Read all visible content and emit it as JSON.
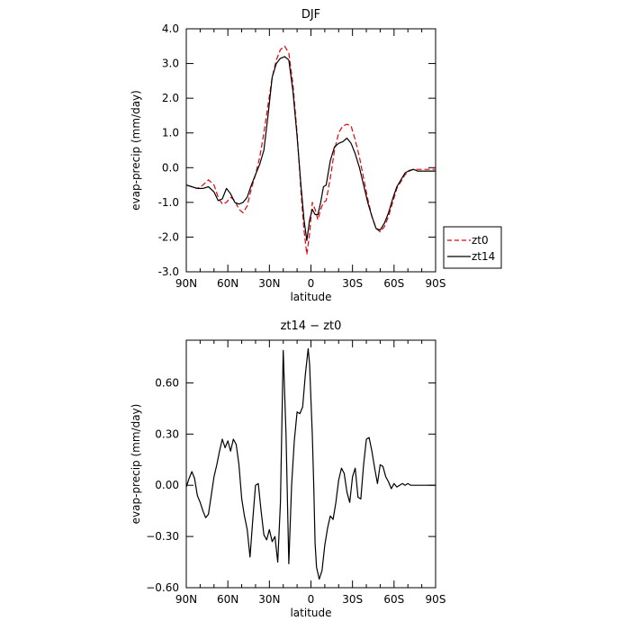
{
  "chart_data": [
    {
      "type": "line",
      "title": "DJF",
      "xlabel": "latitude",
      "ylabel": "evap-precip (mm/day)",
      "xlim": [
        -90,
        90
      ],
      "ylim": [
        -3.0,
        4.0
      ],
      "x_ticks": [
        -90,
        -60,
        -30,
        0,
        30,
        60,
        90
      ],
      "x_tick_labels": [
        "90N",
        "60N",
        "30N",
        "0",
        "30S",
        "60S",
        "90S"
      ],
      "y_ticks": [
        -3,
        -2,
        -1,
        0,
        1,
        2,
        3,
        4
      ],
      "y_tick_labels": [
        "-3.0",
        "-2.0",
        "-1.0",
        "0.0",
        "1.0",
        "2.0",
        "3.0",
        "4.0"
      ],
      "legend_position": "outside-right",
      "series": [
        {
          "name": "zt0",
          "color": "#e8000b",
          "dash": "dashed",
          "x": [
            -90,
            -86,
            -82,
            -78,
            -74,
            -70,
            -67,
            -64,
            -61,
            -58,
            -55,
            -52,
            -49,
            -46,
            -43,
            -40,
            -37,
            -34,
            -31,
            -28,
            -25,
            -22,
            -19,
            -16,
            -13,
            -10,
            -7,
            -5,
            -3,
            -1,
            1,
            3,
            5,
            7,
            9,
            11,
            14,
            17,
            20,
            23,
            26,
            29,
            32,
            35,
            38,
            41,
            44,
            47,
            50,
            53,
            56,
            59,
            62,
            65,
            68,
            71,
            74,
            77,
            80,
            83,
            86,
            90
          ],
          "y": [
            -0.5,
            -0.55,
            -0.6,
            -0.5,
            -0.35,
            -0.5,
            -0.85,
            -1.05,
            -1.0,
            -0.85,
            -0.95,
            -1.2,
            -1.3,
            -1.1,
            -0.6,
            -0.2,
            0.3,
            1.0,
            1.8,
            2.6,
            3.1,
            3.4,
            3.5,
            3.3,
            2.4,
            1.0,
            -0.8,
            -1.8,
            -2.5,
            -1.9,
            -1.0,
            -1.2,
            -1.5,
            -1.2,
            -1.0,
            -0.95,
            -0.3,
            0.5,
            1.0,
            1.2,
            1.25,
            1.2,
            0.8,
            0.3,
            -0.3,
            -0.9,
            -1.4,
            -1.75,
            -1.85,
            -1.7,
            -1.4,
            -1.0,
            -0.6,
            -0.4,
            -0.2,
            -0.1,
            -0.05,
            -0.05,
            -0.05,
            -0.05,
            -0.05,
            -0.05
          ]
        },
        {
          "name": "zt14",
          "color": "#000000",
          "dash": "solid",
          "x": [
            -90,
            -86,
            -82,
            -78,
            -74,
            -70,
            -67,
            -64,
            -61,
            -58,
            -55,
            -52,
            -49,
            -46,
            -43,
            -40,
            -37,
            -34,
            -31,
            -28,
            -25,
            -22,
            -19,
            -16,
            -13,
            -10,
            -7,
            -5,
            -3,
            -1,
            1,
            3,
            5,
            7,
            9,
            11,
            14,
            17,
            20,
            23,
            26,
            29,
            32,
            35,
            38,
            41,
            44,
            47,
            50,
            53,
            56,
            59,
            62,
            65,
            68,
            71,
            74,
            77,
            80,
            83,
            86,
            90
          ],
          "y": [
            -0.5,
            -0.55,
            -0.6,
            -0.6,
            -0.55,
            -0.7,
            -0.95,
            -0.9,
            -0.6,
            -0.75,
            -1.0,
            -1.05,
            -1.0,
            -0.85,
            -0.5,
            -0.2,
            0.1,
            0.5,
            1.5,
            2.6,
            3.0,
            3.15,
            3.2,
            3.1,
            2.2,
            0.9,
            -0.6,
            -1.5,
            -2.1,
            -1.5,
            -1.2,
            -1.35,
            -1.35,
            -1.0,
            -0.55,
            -0.5,
            0.2,
            0.6,
            0.7,
            0.75,
            0.85,
            0.7,
            0.4,
            0.0,
            -0.5,
            -1.0,
            -1.4,
            -1.75,
            -1.8,
            -1.6,
            -1.3,
            -0.9,
            -0.55,
            -0.35,
            -0.15,
            -0.08,
            -0.05,
            -0.1,
            -0.1,
            -0.1,
            -0.1,
            -0.1
          ]
        }
      ]
    },
    {
      "type": "line",
      "title": "zt14 − zt0",
      "xlabel": "latitude",
      "ylabel": "evap-precip (mm/day)",
      "xlim": [
        -90,
        90
      ],
      "ylim": [
        -0.6,
        0.85
      ],
      "x_ticks": [
        -90,
        -60,
        -30,
        0,
        30,
        60,
        90
      ],
      "x_tick_labels": [
        "90N",
        "60N",
        "30N",
        "0",
        "30S",
        "60S",
        "90S"
      ],
      "y_ticks": [
        -0.6,
        -0.3,
        0,
        0.3,
        0.6
      ],
      "y_tick_labels": [
        "−0.60",
        "−0.30",
        "0.00",
        "0.30",
        "0.60"
      ],
      "series": [
        {
          "color": "#000000",
          "dash": "solid",
          "x": [
            -90,
            -88,
            -86,
            -84,
            -82,
            -80,
            -78,
            -76,
            -74,
            -72,
            -70,
            -68,
            -66,
            -64,
            -62,
            -60,
            -58,
            -56,
            -54,
            -52,
            -50,
            -48,
            -46,
            -44,
            -42,
            -40,
            -38,
            -36,
            -34,
            -32,
            -30,
            -28,
            -26,
            -24,
            -22,
            -20,
            -18,
            -16,
            -14,
            -12,
            -10,
            -8,
            -6,
            -4,
            -2,
            -1,
            0,
            1,
            2,
            3,
            4,
            6,
            8,
            10,
            12,
            14,
            16,
            18,
            20,
            22,
            24,
            26,
            28,
            30,
            32,
            34,
            36,
            38,
            40,
            42,
            44,
            46,
            48,
            50,
            52,
            54,
            56,
            58,
            60,
            62,
            64,
            66,
            68,
            70,
            72,
            74,
            76,
            78,
            80,
            82,
            84,
            86,
            88,
            90
          ],
          "y": [
            -0.01,
            0.04,
            0.08,
            0.04,
            -0.06,
            -0.1,
            -0.15,
            -0.19,
            -0.17,
            -0.06,
            0.05,
            0.12,
            0.2,
            0.27,
            0.22,
            0.26,
            0.2,
            0.27,
            0.24,
            0.12,
            -0.08,
            -0.18,
            -0.26,
            -0.42,
            -0.2,
            0.0,
            0.01,
            -0.15,
            -0.29,
            -0.32,
            -0.26,
            -0.33,
            -0.3,
            -0.45,
            -0.1,
            0.79,
            0.3,
            -0.46,
            0.0,
            0.26,
            0.43,
            0.42,
            0.46,
            0.65,
            0.8,
            0.71,
            0.5,
            0.3,
            0.0,
            -0.34,
            -0.48,
            -0.55,
            -0.5,
            -0.35,
            -0.25,
            -0.18,
            -0.2,
            -0.1,
            0.03,
            0.1,
            0.07,
            -0.04,
            -0.1,
            0.05,
            0.1,
            -0.07,
            -0.08,
            0.12,
            0.27,
            0.28,
            0.2,
            0.1,
            0.01,
            0.12,
            0.11,
            0.05,
            0.02,
            -0.02,
            0.01,
            -0.01,
            0.0,
            0.01,
            0.0,
            0.01,
            0.0,
            0.0,
            0.0,
            0.0,
            0.0,
            0.0,
            0.0,
            0.0,
            0.0,
            0.0
          ]
        }
      ]
    }
  ]
}
